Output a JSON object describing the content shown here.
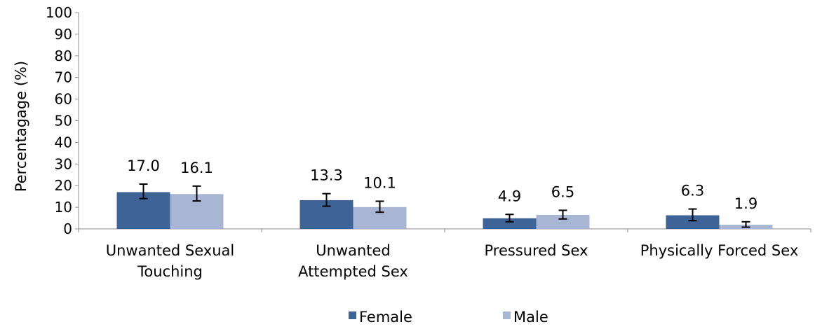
{
  "chart_data": {
    "type": "bar",
    "title": "",
    "xlabel": "",
    "ylabel": "Percentagage (%)",
    "ylim": [
      0,
      100
    ],
    "yticks": [
      0,
      10,
      20,
      30,
      40,
      50,
      60,
      70,
      80,
      90,
      100
    ],
    "grid": false,
    "legend_position": "bottom",
    "categories": [
      [
        "Unwanted Sexual",
        "Touching"
      ],
      [
        "Unwanted",
        "Attempted Sex"
      ],
      [
        "Pressured Sex"
      ],
      [
        "Physically Forced Sex"
      ]
    ],
    "series": [
      {
        "name": "Female",
        "color": "#3E6396",
        "values": [
          17.0,
          13.3,
          4.9,
          6.3
        ],
        "labels": [
          "17.0",
          "13.3",
          "4.9",
          "6.3"
        ],
        "error_low": [
          14.0,
          10.5,
          3.3,
          3.8
        ],
        "error_high": [
          20.7,
          16.3,
          6.7,
          9.2
        ]
      },
      {
        "name": "Male",
        "color": "#A9B6D3",
        "values": [
          16.1,
          10.1,
          6.5,
          1.9
        ],
        "labels": [
          "16.1",
          "10.1",
          "6.5",
          "1.9"
        ],
        "error_low": [
          12.9,
          7.7,
          4.6,
          0.8
        ],
        "error_high": [
          19.8,
          12.8,
          8.6,
          3.3
        ]
      }
    ]
  }
}
